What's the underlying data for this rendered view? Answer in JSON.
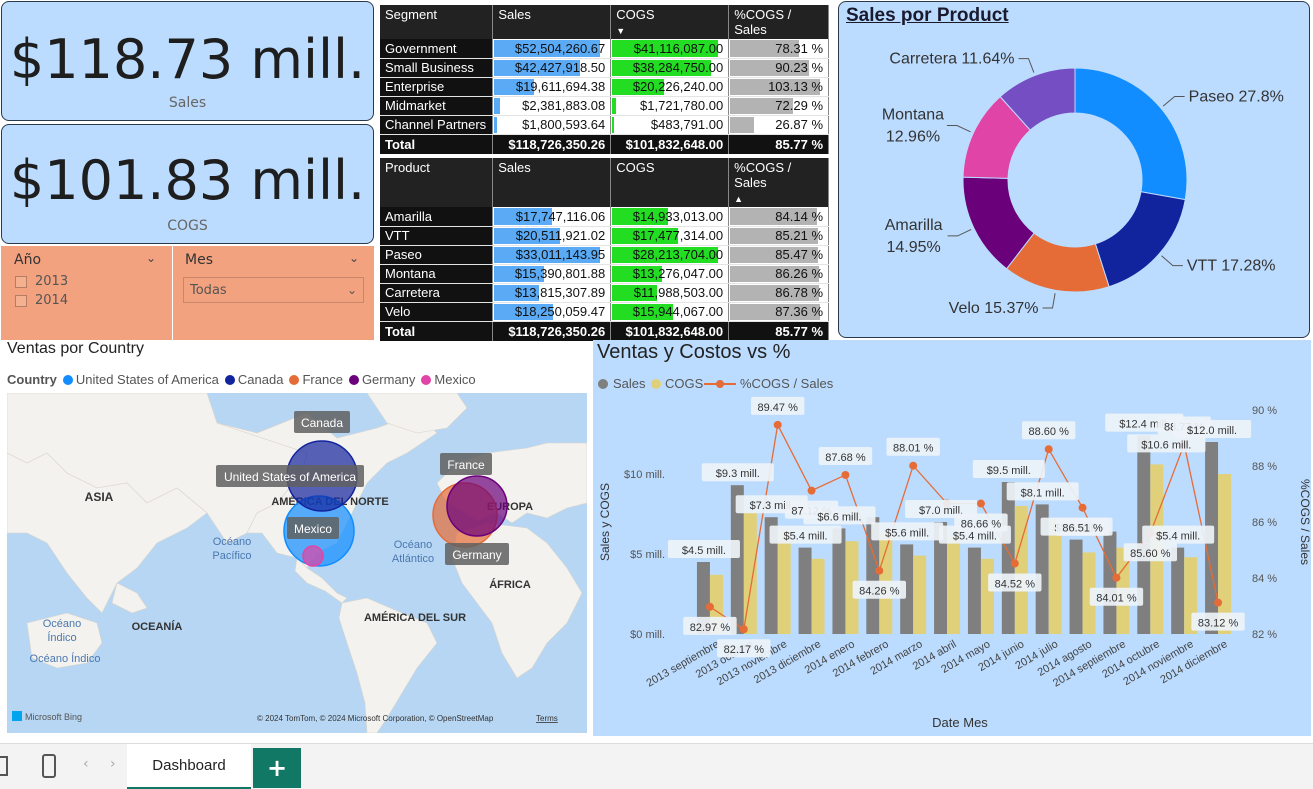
{
  "kpis": {
    "sales": {
      "value": "$118.73 mill.",
      "label": "Sales"
    },
    "cogs": {
      "value": "$101.83 mill.",
      "label": "COGS"
    }
  },
  "slicers": {
    "year": {
      "title": "Año",
      "options": [
        "2013",
        "2014"
      ]
    },
    "month": {
      "title": "Mes",
      "selected": "Todas"
    }
  },
  "segment_table": {
    "headers": [
      "Segment",
      "Sales",
      "COGS",
      "%COGS / Sales"
    ],
    "rows": [
      {
        "label": "Government",
        "sales": "$52,504,260.67",
        "cogs": "$41,116,087.00",
        "pct": "78.31 %",
        "s": 1.0,
        "c": 1.0,
        "p": 0.76
      },
      {
        "label": "Small Business",
        "sales": "$42,427,918.50",
        "cogs": "$38,284,750.00",
        "pct": "90.23 %",
        "s": 0.81,
        "c": 0.93,
        "p": 0.87
      },
      {
        "label": "Enterprise",
        "sales": "$19,611,694.38",
        "cogs": "$20,226,240.00",
        "pct": "103.13 %",
        "s": 0.37,
        "c": 0.49,
        "p": 1.0
      },
      {
        "label": "Midmarket",
        "sales": "$2,381,883.08",
        "cogs": "$1,721,780.00",
        "pct": "72.29 %",
        "s": 0.05,
        "c": 0.04,
        "p": 0.7
      },
      {
        "label": "Channel Partners",
        "sales": "$1,800,593.64",
        "cogs": "$483,791.00",
        "pct": "26.87 %",
        "s": 0.03,
        "c": 0.01,
        "p": 0.26
      }
    ],
    "total": {
      "label": "Total",
      "sales": "$118,726,350.26",
      "cogs": "$101,832,648.00",
      "pct": "85.77 %"
    }
  },
  "product_table": {
    "headers": [
      "Product",
      "Sales",
      "COGS",
      "%COGS / Sales"
    ],
    "rows": [
      {
        "label": "Amarilla",
        "sales": "$17,747,116.06",
        "cogs": "$14,933,013.00",
        "pct": "84.14 %",
        "s": 0.54,
        "c": 0.53,
        "p": 0.96
      },
      {
        "label": "VTT",
        "sales": "$20,511,921.02",
        "cogs": "$17,477,314.00",
        "pct": "85.21 %",
        "s": 0.62,
        "c": 0.62,
        "p": 0.97
      },
      {
        "label": "Paseo",
        "sales": "$33,011,143.95",
        "cogs": "$28,213,704.00",
        "pct": "85.47 %",
        "s": 1.0,
        "c": 1.0,
        "p": 0.98
      },
      {
        "label": "Montana",
        "sales": "$15,390,801.88",
        "cogs": "$13,276,047.00",
        "pct": "86.26 %",
        "s": 0.47,
        "c": 0.47,
        "p": 0.99
      },
      {
        "label": "Carretera",
        "sales": "$13,815,307.89",
        "cogs": "$11,988,503.00",
        "pct": "86.78 %",
        "s": 0.42,
        "c": 0.42,
        "p": 0.99
      },
      {
        "label": "Velo",
        "sales": "$18,250,059.47",
        "cogs": "$15,944,067.00",
        "pct": "87.36 %",
        "s": 0.55,
        "c": 0.57,
        "p": 1.0
      }
    ],
    "total": {
      "label": "Total",
      "sales": "$118,726,350.26",
      "cogs": "$101,832,648.00",
      "pct": "85.77 %"
    }
  },
  "donut": {
    "title": "Sales por Product",
    "chart_data": {
      "type": "pie",
      "categories": [
        "Paseo",
        "VTT",
        "Velo",
        "Amarilla",
        "Montana",
        "Carretera"
      ],
      "values": [
        27.8,
        17.28,
        15.37,
        14.95,
        12.96,
        11.64
      ],
      "labels": [
        "Paseo 27.8%",
        "VTT 17.28%",
        "Velo 15.37%",
        "Amarilla\n14.95%",
        "Montana\n12.96%",
        "Carretera 11.64%"
      ],
      "colors": [
        "#118dff",
        "#12239e",
        "#e66c37",
        "#6b007b",
        "#e044a7",
        "#744ec2"
      ]
    }
  },
  "map": {
    "title": "Ventas por Country",
    "legend_title": "Country",
    "legend": [
      {
        "name": "United States of America",
        "color": "#118dff"
      },
      {
        "name": "Canada",
        "color": "#12239e"
      },
      {
        "name": "France",
        "color": "#e66c37"
      },
      {
        "name": "Germany",
        "color": "#6b007b"
      },
      {
        "name": "Mexico",
        "color": "#e044a7"
      }
    ],
    "region_labels": {
      "asia": "ASIA",
      "na": "AMÉRICA DEL NORTE",
      "europe": "EUROPA",
      "africa": "ÁFRICA",
      "sa": "AMÉRICA DEL SUR",
      "oceania": "OCEANÍA",
      "pacific": "Océano\nPacífico",
      "atlantic": "Océano\nAtlántico",
      "indian1": "Océano\nÍndico",
      "indian2": "Océano Índico"
    },
    "bubble_labels": {
      "canada": "Canada",
      "usa": "United States of America",
      "mexico": "Mexico",
      "france": "France",
      "germany": "Germany"
    },
    "attribution": "© 2024 TomTom, © 2024 Microsoft Corporation, © OpenStreetMap",
    "terms": "Terms",
    "bing": "Microsoft Bing"
  },
  "combo": {
    "title": "Ventas y Costos vs %",
    "legend": {
      "sales": "Sales",
      "cogs": "COGS",
      "pct": "%COGS /  Sales"
    },
    "colors": {
      "sales": "#7f7f7f",
      "cogs": "#e0d07a",
      "pct": "#e66c37"
    },
    "y_left_label": "Sales y COGS",
    "y_right_label": "%COGS / Sales",
    "x_label": "Date Mes",
    "y_left_ticks": [
      "$0 mill.",
      "$5 mill.",
      "$10 mill."
    ],
    "y_right_ticks": [
      "82 %",
      "84 %",
      "86 %",
      "88 %",
      "90 %"
    ],
    "chart_data": {
      "type": "bar",
      "categories": [
        "2013 septiembre",
        "2013 octubre",
        "2013 noviembre",
        "2013 diciembre",
        "2014 enero",
        "2014 febrero",
        "2014 marzo",
        "2014 abril",
        "2014 mayo",
        "2014 junio",
        "2014 julio",
        "2014 agosto",
        "2014 septiembre",
        "2014 octubre",
        "2014 noviembre",
        "2014 diciembre"
      ],
      "series": [
        {
          "name": "Sales",
          "values": [
            4.5,
            9.3,
            7.3,
            5.4,
            6.6,
            7.3,
            5.6,
            7.0,
            5.4,
            9.5,
            8.1,
            5.9,
            6.4,
            12.4,
            5.4,
            12.0
          ]
        },
        {
          "name": "COGS",
          "values": [
            3.7,
            7.6,
            6.5,
            4.7,
            5.8,
            6.4,
            4.9,
            6.1,
            4.7,
            8.0,
            7.2,
            5.1,
            5.4,
            10.6,
            4.8,
            10.0
          ]
        },
        {
          "name": "%COGS /  Sales",
          "values": [
            82.97,
            82.17,
            89.47,
            87.12,
            87.68,
            84.26,
            88.01,
            86.66,
            86.66,
            84.52,
            88.6,
            86.51,
            84.01,
            85.6,
            88.77,
            83.12
          ]
        }
      ],
      "bar_labels": [
        "$4.5 mill.",
        "$9.3 mill.",
        "$7.3 mill.",
        "$5.4 mill.",
        "$6.6 mill.",
        "",
        "$5.6 mill.",
        "$7.0 mill.",
        "$5.4 mill.",
        "$9.5 mill.",
        "$8.1 mill.",
        "$5.9 mill.",
        "",
        "$12.4 mill.",
        "$5.4 mill.",
        "$12.0 mill."
      ],
      "extra_label": "$10.6 mill.",
      "pct_labels": [
        "82.97 %",
        "82.17 %",
        "89.47 %",
        "87.12 %",
        "87.68 %",
        "84.26 %",
        "88.01 %",
        "",
        "86.66 %",
        "84.52 %",
        "88.60 %",
        "86.51 %",
        "84.01 %",
        "85.60 %",
        "88.77 %",
        "83.12 %"
      ],
      "ylim_left": [
        0,
        14
      ],
      "ylim_right": [
        82,
        90
      ]
    }
  },
  "tabs": {
    "active": "Dashboard",
    "add": "+"
  }
}
